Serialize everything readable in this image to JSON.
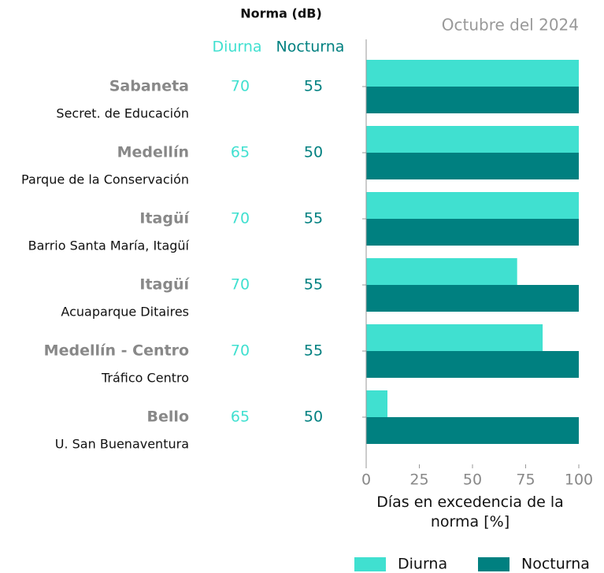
{
  "chart_data": {
    "type": "bar",
    "orientation": "horizontal",
    "title": "Octubre del 2024",
    "norm_header": "Norma (dB)",
    "categories": [
      "Sabaneta",
      "Medellín",
      "Itagüí",
      "Itagüí",
      "Medellín - Centro",
      "Bello"
    ],
    "stations": [
      "Secret. de Educación",
      "Parque de la Conservación",
      "Barrio Santa María, Itagüí",
      "Acuaparque Ditaires",
      "Tráfico Centro",
      "U. San Buenaventura"
    ],
    "series": [
      {
        "name": "Diurna",
        "color": "#40e0d0",
        "values": [
          100,
          100,
          100,
          71,
          83,
          10
        ],
        "norm": [
          70,
          65,
          70,
          70,
          70,
          65
        ]
      },
      {
        "name": "Nocturna",
        "color": "#008080",
        "values": [
          100,
          100,
          100,
          100,
          100,
          100
        ],
        "norm": [
          55,
          50,
          55,
          55,
          55,
          50
        ]
      }
    ],
    "xlim": [
      0,
      100
    ],
    "xticks": [
      0,
      25,
      50,
      75,
      100
    ],
    "xlabel": "Días en excedencia de la norma [%]",
    "legend": "bottom"
  }
}
